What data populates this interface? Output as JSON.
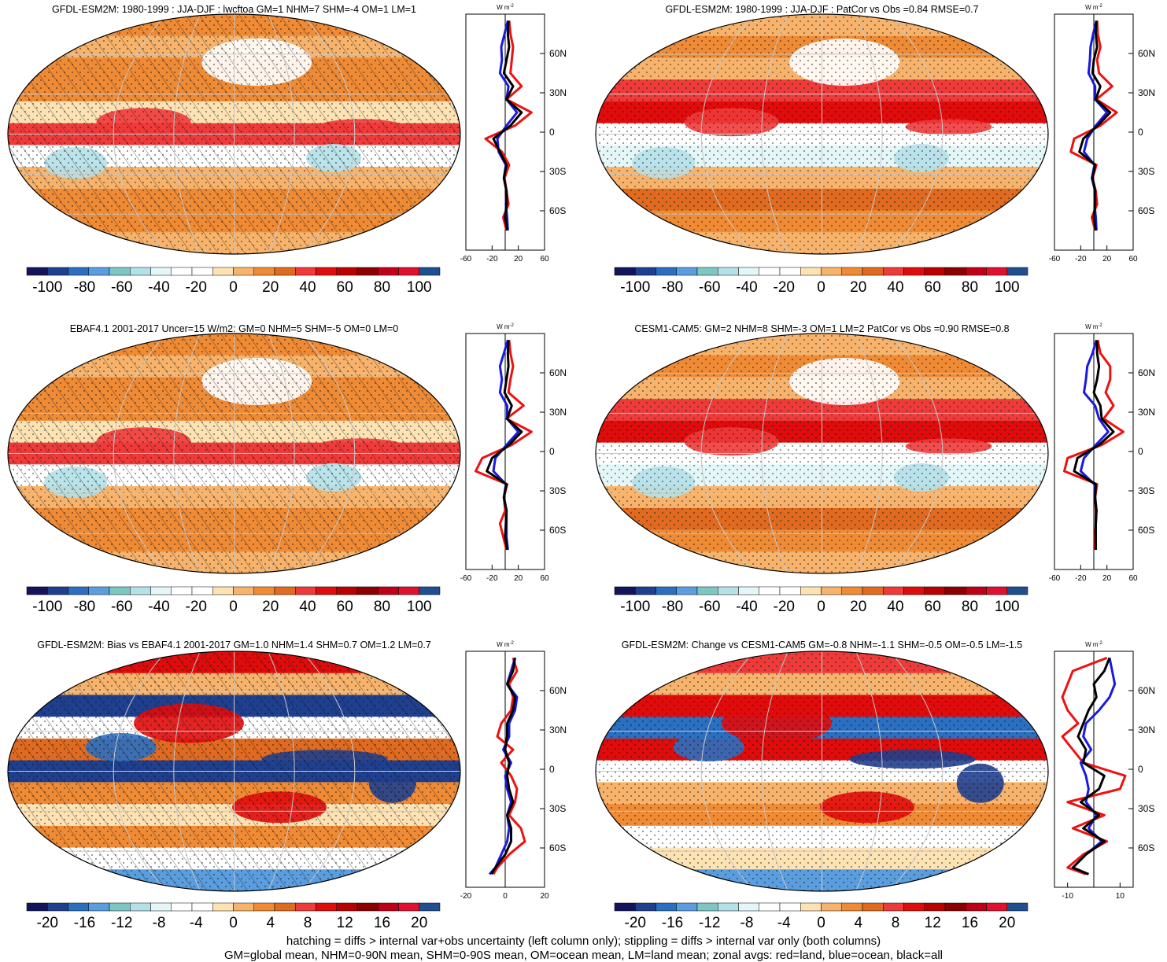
{
  "figure": {
    "footer": [
      "hatching = diffs > internal var+obs uncertainty (left column only); stippling = diffs > internal var only (both columns)",
      "GM=global mean, NHM=0-90N mean, SHM=0-90S mean, OM=ocean mean, LM=land mean; zonal avgs: red=land, blue=ocean, black=all"
    ]
  },
  "colors": {
    "land": "#ee1111",
    "ocean": "#1a1adf",
    "all": "#000000",
    "palette": [
      "#14145a",
      "#1f3f8f",
      "#2b6fc0",
      "#5a9ee0",
      "#7cc7c2",
      "#b4e0e8",
      "#e4f6f8",
      "#ffffff",
      "#ffffff",
      "#fde2b4",
      "#f7b36b",
      "#ef8a35",
      "#e06a1f",
      "#ef3a3a",
      "#e00b0b",
      "#bb0000",
      "#8c0000",
      "#c00018",
      "#e01030",
      "#1f4f8f"
    ]
  },
  "chart_data": [
    {
      "type": "heatmap",
      "panel": "a",
      "title": "GFDL-ESM2M: 1980-1999 : JJA-DJF : lwcftoa GM=1 NHM=7 SHM=-4 OM=1 LM=1",
      "colorbar_ticks": [
        "-100",
        "-80",
        "-60",
        "-40",
        "-20",
        "0",
        "20",
        "40",
        "60",
        "80",
        "100"
      ],
      "hatching": true,
      "zonal": {
        "unit_main": "W m",
        "unit_sup": "-2",
        "xlim": [
          -60,
          60
        ],
        "xticks": [
          "-60",
          "-20",
          "20",
          "60"
        ],
        "ylim": [
          -90,
          90
        ],
        "yticks": [
          "60N",
          "30N",
          "0",
          "30S",
          "60S"
        ],
        "lat": [
          -75,
          -65,
          -55,
          -45,
          -35,
          -25,
          -15,
          -5,
          5,
          15,
          25,
          35,
          45,
          55,
          65,
          75,
          85
        ],
        "land": [
          2,
          -3,
          5,
          2,
          -1,
          6,
          -5,
          -30,
          15,
          40,
          2,
          25,
          8,
          10,
          12,
          8,
          6
        ],
        "ocean": [
          4,
          3,
          1,
          2,
          -2,
          1,
          -10,
          -12,
          2,
          18,
          2,
          5,
          -8,
          -5,
          -6,
          -1,
          4
        ],
        "all": [
          3,
          0,
          2,
          2,
          -2,
          2,
          -8,
          -18,
          8,
          25,
          2,
          12,
          -2,
          2,
          6,
          4,
          5
        ]
      }
    },
    {
      "type": "heatmap",
      "panel": "b",
      "title": "GFDL-ESM2M: 1980-1999 : JJA-DJF : PatCor vs Obs =0.84 RMSE=0.7",
      "colorbar_ticks": [
        "-100",
        "-80",
        "-60",
        "-40",
        "-20",
        "0",
        "20",
        "40",
        "60",
        "80",
        "100"
      ],
      "hatching": false,
      "zonal": {
        "unit_main": "W m",
        "unit_sup": "-2",
        "xlim": [
          -60,
          60
        ],
        "xticks": [
          "-60",
          "-20",
          "20",
          "60"
        ],
        "ylim": [
          -90,
          90
        ],
        "yticks": [
          "60N",
          "30N",
          "0",
          "30S",
          "60S"
        ],
        "lat": [
          -75,
          -65,
          -55,
          -45,
          -35,
          -25,
          -15,
          -5,
          5,
          15,
          25,
          35,
          45,
          55,
          65,
          75,
          85
        ],
        "land": [
          2,
          -3,
          5,
          3,
          -2,
          4,
          -35,
          -30,
          10,
          35,
          4,
          28,
          8,
          5,
          10,
          6,
          5
        ],
        "ocean": [
          4,
          3,
          1,
          2,
          -3,
          1,
          -15,
          -10,
          3,
          20,
          2,
          2,
          -8,
          -6,
          -5,
          -1,
          4
        ],
        "all": [
          3,
          0,
          2,
          2,
          -2,
          2,
          -22,
          -16,
          6,
          25,
          3,
          10,
          -2,
          0,
          5,
          3,
          4
        ]
      }
    },
    {
      "type": "heatmap",
      "panel": "c",
      "title": "EBAF4.1 2001-2017 Uncer=15 W/m2: GM=0 NHM=5 SHM=-5 OM=0 LM=0",
      "colorbar_ticks": [
        "-100",
        "-80",
        "-60",
        "-40",
        "-20",
        "0",
        "20",
        "40",
        "60",
        "80",
        "100"
      ],
      "hatching": true,
      "zonal": {
        "unit_main": "W m",
        "unit_sup": "-2",
        "xlim": [
          -60,
          60
        ],
        "xticks": [
          "-60",
          "-20",
          "20",
          "60"
        ],
        "ylim": [
          -90,
          90
        ],
        "yticks": [
          "60N",
          "30N",
          "0",
          "30S",
          "60S"
        ],
        "lat": [
          -75,
          -65,
          -55,
          -45,
          -35,
          -25,
          -15,
          -5,
          5,
          15,
          25,
          35,
          45,
          55,
          65,
          75,
          85
        ],
        "land": [
          2,
          -3,
          -8,
          0,
          -2,
          3,
          -45,
          -35,
          10,
          40,
          2,
          28,
          5,
          8,
          12,
          8,
          6
        ],
        "ocean": [
          4,
          2,
          2,
          2,
          -2,
          1,
          -18,
          -15,
          2,
          20,
          3,
          3,
          -8,
          -5,
          -8,
          -2,
          4
        ],
        "all": [
          3,
          0,
          1,
          2,
          -2,
          2,
          -28,
          -20,
          6,
          25,
          3,
          10,
          -1,
          2,
          5,
          4,
          5
        ]
      }
    },
    {
      "type": "heatmap",
      "panel": "d",
      "title": "CESM1-CAM5: GM=2 NHM=8 SHM=-3 OM=1 LM=2 PatCor vs Obs =0.90 RMSE=0.8",
      "colorbar_ticks": [
        "-100",
        "-80",
        "-60",
        "-40",
        "-20",
        "0",
        "20",
        "40",
        "60",
        "80",
        "100"
      ],
      "hatching": false,
      "zonal": {
        "unit_main": "W m",
        "unit_sup": "-2",
        "xlim": [
          -60,
          60
        ],
        "xticks": [
          "-60",
          "-20",
          "20",
          "60"
        ],
        "ylim": [
          -90,
          90
        ],
        "yticks": [
          "60N",
          "30N",
          "0",
          "30S",
          "60S"
        ],
        "lat": [
          -75,
          -65,
          -55,
          -45,
          -35,
          -25,
          -15,
          -5,
          5,
          15,
          25,
          35,
          45,
          55,
          65,
          75,
          85
        ],
        "land": [
          2,
          2,
          3,
          3,
          2,
          5,
          -45,
          -40,
          12,
          45,
          15,
          30,
          18,
          25,
          25,
          10,
          6
        ],
        "ocean": [
          3,
          3,
          3,
          4,
          2,
          1,
          -20,
          -15,
          3,
          22,
          8,
          2,
          -15,
          -12,
          -10,
          -2,
          4
        ],
        "all": [
          3,
          3,
          3,
          4,
          2,
          3,
          -30,
          -25,
          8,
          30,
          12,
          10,
          0,
          5,
          8,
          5,
          5
        ]
      }
    },
    {
      "type": "heatmap",
      "panel": "e",
      "title": "GFDL-ESM2M: Bias vs EBAF4.1 2001-2017 GM=1.0 NHM=1.4 SHM=0.7 OM=1.2 LM=0.7",
      "colorbar_ticks": [
        "-20",
        "-16",
        "-12",
        "-8",
        "-4",
        "0",
        "4",
        "8",
        "12",
        "16",
        "20"
      ],
      "hatching": true,
      "zonal": {
        "unit_main": "W m",
        "unit_sup": "-2",
        "xlim": [
          -20,
          20
        ],
        "xticks": [
          "-20",
          "0",
          "20"
        ],
        "ylim": [
          -90,
          90
        ],
        "yticks": [
          "60N",
          "30N",
          "0",
          "30S",
          "60S"
        ],
        "lat": [
          -80,
          -75,
          -65,
          -55,
          -45,
          -35,
          -25,
          -15,
          -5,
          5,
          15,
          25,
          35,
          45,
          55,
          65,
          75,
          85
        ],
        "land": [
          -6,
          -4,
          2,
          10,
          8,
          2,
          5,
          6,
          3,
          -2,
          4,
          -4,
          -2,
          3,
          4,
          2,
          6,
          4
        ],
        "ocean": [
          -8,
          -5,
          -2,
          1,
          2,
          1,
          3,
          1,
          0,
          3,
          -1,
          2,
          2,
          5,
          6,
          1,
          3,
          5
        ],
        "all": [
          -7,
          -5,
          0,
          3,
          3,
          1,
          4,
          2,
          1,
          2,
          0,
          1,
          1,
          4,
          5,
          1,
          4,
          5
        ]
      }
    },
    {
      "type": "heatmap",
      "panel": "f",
      "title": "GFDL-ESM2M: Change vs CESM1-CAM5 GM=-0.8 NHM=-1.1 SHM=-0.5 OM=-0.5 LM=-1.5",
      "colorbar_ticks": [
        "-20",
        "-16",
        "-12",
        "-8",
        "-4",
        "0",
        "4",
        "8",
        "12",
        "16",
        "20"
      ],
      "hatching": false,
      "zonal": {
        "unit_main": "W m",
        "unit_sup": "-2",
        "xlim": [
          -15,
          15
        ],
        "xticks": [
          "-10",
          "10"
        ],
        "ylim": [
          -90,
          90
        ],
        "yticks": [
          "60N",
          "30N",
          "0",
          "30S",
          "60S"
        ],
        "lat": [
          -80,
          -75,
          -65,
          -55,
          -45,
          -35,
          -25,
          -15,
          -5,
          5,
          15,
          25,
          35,
          45,
          55,
          65,
          75,
          85
        ],
        "land": [
          -3,
          -10,
          -4,
          5,
          -8,
          4,
          -10,
          10,
          12,
          -4,
          -8,
          -12,
          -6,
          -10,
          -12,
          -10,
          -8,
          5
        ],
        "ocean": [
          -2,
          -8,
          -3,
          3,
          -2,
          1,
          -3,
          -2,
          -3,
          -5,
          -1,
          -4,
          -3,
          2,
          6,
          8,
          7,
          6
        ],
        "all": [
          -2,
          -8,
          -3,
          4,
          -4,
          2,
          -5,
          2,
          4,
          -4,
          -3,
          -6,
          -4,
          -2,
          1,
          0,
          4,
          6
        ]
      }
    }
  ]
}
